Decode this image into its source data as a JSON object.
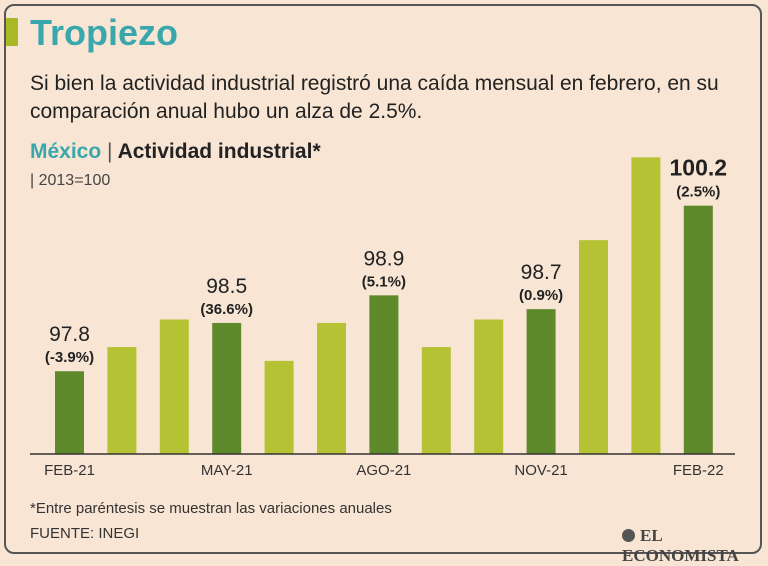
{
  "header": {
    "title": "Tropiezo",
    "subtitle": "Si bien la actividad  industrial registró una caída mensual en febrero, en su comparación anual hubo un alza de 2.5%."
  },
  "chart_header": {
    "country": "México",
    "separator": "|",
    "indicator": "Actividad industrial*",
    "base": "| 2013=100"
  },
  "colors": {
    "background": "#f8e5d4",
    "bar_dark": "#5f8a2c",
    "bar_light": "#b5c234",
    "title": "#3aa7ac"
  },
  "chart_data": {
    "type": "bar",
    "ylim": [
      96.6,
      101.5
    ],
    "grid": false,
    "x_tick_labels": [
      "FEB-21",
      "",
      "",
      "MAY-21",
      "",
      "",
      "AGO-21",
      "",
      "",
      "NOV-21",
      "",
      "",
      "FEB-22"
    ],
    "values": [
      97.8,
      98.15,
      98.55,
      98.5,
      97.95,
      98.5,
      98.9,
      98.15,
      98.55,
      98.7,
      99.7,
      100.9,
      100.2
    ],
    "highlight": [
      true,
      false,
      false,
      true,
      false,
      false,
      true,
      false,
      false,
      true,
      false,
      false,
      true
    ],
    "value_labels": [
      "97.8",
      "",
      "",
      "98.5",
      "",
      "",
      "98.9",
      "",
      "",
      "98.7",
      "",
      "",
      "100.2"
    ],
    "change_labels": [
      "(-3.9%)",
      "",
      "",
      "(36.6%)",
      "",
      "",
      "(5.1%)",
      "",
      "",
      "(0.9%)",
      "",
      "",
      "(2.5%)"
    ]
  },
  "footer": {
    "footnote": "*Entre paréntesis se muestran las variaciones anuales",
    "source": "FUENTE: INEGI",
    "brand": "EL ECONOMISTA"
  }
}
